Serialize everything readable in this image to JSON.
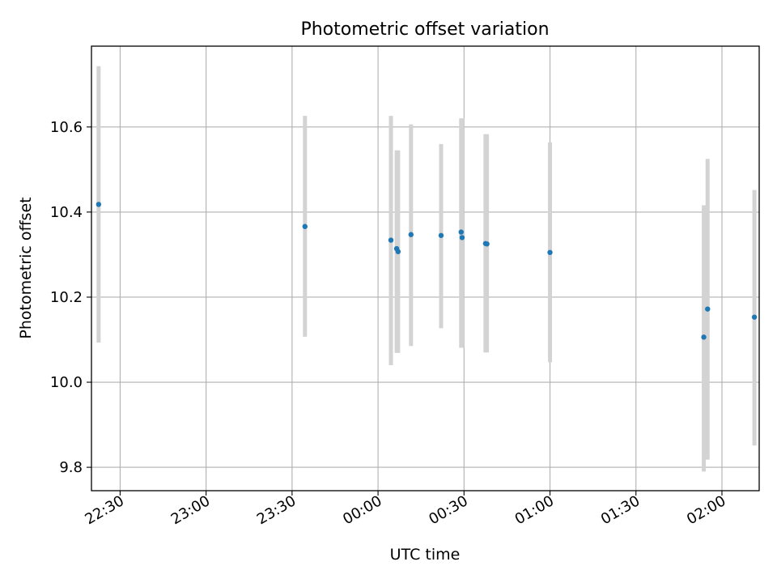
{
  "chart_data": {
    "type": "scatter",
    "title": "Photometric offset variation",
    "xlabel": "UTC time",
    "ylabel": "Photometric offset",
    "x_axis_kind": "time",
    "xlim": [
      "2023-01-01T22:20:00",
      "2023-01-02T02:13:00"
    ],
    "ylim": [
      9.745,
      10.79
    ],
    "xticks": [
      {
        "t": "2023-01-01T22:30:00",
        "label": "22:30"
      },
      {
        "t": "2023-01-01T23:00:00",
        "label": "23:00"
      },
      {
        "t": "2023-01-01T23:30:00",
        "label": "23:30"
      },
      {
        "t": "2023-01-02T00:00:00",
        "label": "00:00"
      },
      {
        "t": "2023-01-02T00:30:00",
        "label": "00:30"
      },
      {
        "t": "2023-01-02T01:00:00",
        "label": "01:00"
      },
      {
        "t": "2023-01-02T01:30:00",
        "label": "01:30"
      },
      {
        "t": "2023-01-02T02:00:00",
        "label": "02:00"
      }
    ],
    "yticks": [
      {
        "v": 9.8,
        "label": "9.8"
      },
      {
        "v": 10.0,
        "label": "10.0"
      },
      {
        "v": 10.2,
        "label": "10.2"
      },
      {
        "v": 10.4,
        "label": "10.4"
      },
      {
        "v": 10.6,
        "label": "10.6"
      }
    ],
    "grid": true,
    "point_color": "#1f77b4",
    "errorbar_color": "#d3d3d3",
    "points": [
      {
        "t": "2023-01-01T22:22:30",
        "y": 10.418,
        "ylow": 10.093,
        "yhigh": 10.743
      },
      {
        "t": "2023-01-01T23:34:30",
        "y": 10.366,
        "ylow": 10.107,
        "yhigh": 10.626
      },
      {
        "t": "2023-01-02T00:04:30",
        "y": 10.334,
        "ylow": 10.04,
        "yhigh": 10.626
      },
      {
        "t": "2023-01-02T00:06:30",
        "y": 10.314,
        "ylow": 10.069,
        "yhigh": 10.545
      },
      {
        "t": "2023-01-02T00:07:00",
        "y": 10.307,
        "ylow": 10.069,
        "yhigh": 10.545
      },
      {
        "t": "2023-01-02T00:11:30",
        "y": 10.347,
        "ylow": 10.085,
        "yhigh": 10.606
      },
      {
        "t": "2023-01-02T00:22:00",
        "y": 10.345,
        "ylow": 10.127,
        "yhigh": 10.56
      },
      {
        "t": "2023-01-02T00:29:00",
        "y": 10.353,
        "ylow": 10.081,
        "yhigh": 10.62
      },
      {
        "t": "2023-01-02T00:29:20",
        "y": 10.34,
        "ylow": 10.081,
        "yhigh": 10.62
      },
      {
        "t": "2023-01-02T00:37:30",
        "y": 10.326,
        "ylow": 10.07,
        "yhigh": 10.583
      },
      {
        "t": "2023-01-02T00:38:00",
        "y": 10.325,
        "ylow": 10.07,
        "yhigh": 10.583
      },
      {
        "t": "2023-01-02T01:00:00",
        "y": 10.305,
        "ylow": 10.047,
        "yhigh": 10.564
      },
      {
        "t": "2023-01-02T01:53:40",
        "y": 10.106,
        "ylow": 9.79,
        "yhigh": 10.416
      },
      {
        "t": "2023-01-02T01:55:00",
        "y": 10.172,
        "ylow": 9.818,
        "yhigh": 10.525
      },
      {
        "t": "2023-01-02T02:11:20",
        "y": 10.153,
        "ylow": 9.851,
        "yhigh": 10.452
      }
    ]
  }
}
